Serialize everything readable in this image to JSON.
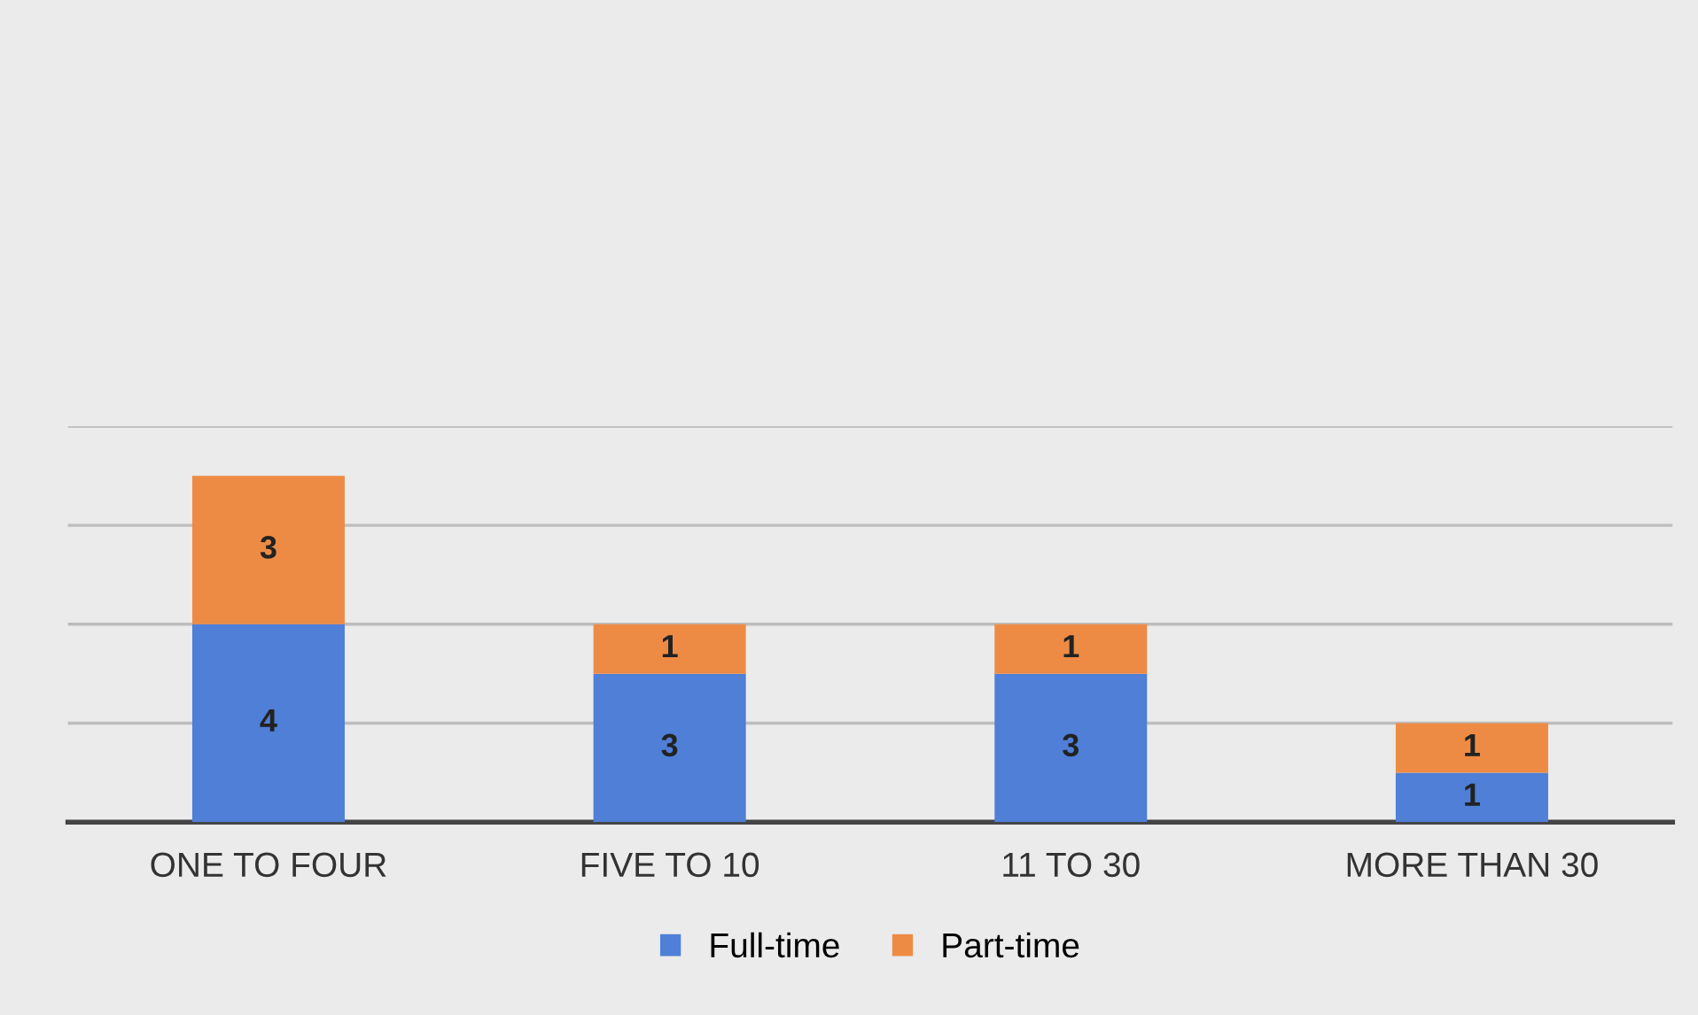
{
  "chart_data": {
    "type": "bar",
    "stacked": true,
    "categories": [
      "ONE TO FOUR",
      "FIVE TO 10",
      "11 TO 30",
      "MORE THAN 30"
    ],
    "series": [
      {
        "name": "Full-time",
        "color": "#4f7fd6",
        "values": [
          4,
          3,
          3,
          1
        ]
      },
      {
        "name": "Part-time",
        "color": "#ed8b45",
        "values": [
          3,
          1,
          1,
          1
        ]
      }
    ],
    "data_labels": true,
    "ylim": [
      0,
      8
    ],
    "yticks": [
      {
        "value": 0,
        "label": null
      },
      {
        "value": 2,
        "label": null
      },
      {
        "value": 4,
        "label": null
      },
      {
        "value": 6,
        "label": null
      },
      {
        "value": 8,
        "label": null
      }
    ],
    "tick_labels": "x",
    "grid": "y",
    "legend": "bottom"
  }
}
